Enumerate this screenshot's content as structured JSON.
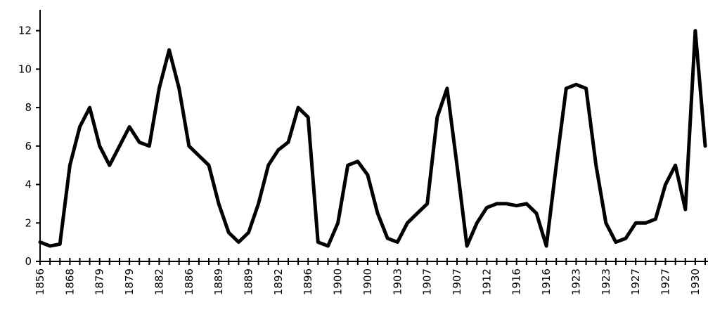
{
  "chart_data": {
    "type": "line",
    "title": "",
    "xlabel": "",
    "ylabel": "",
    "ylim": [
      0,
      12.5
    ],
    "y_ticks": [
      0,
      2,
      4,
      6,
      8,
      10,
      12
    ],
    "grid": false,
    "legend": "none",
    "line_color": "#000000",
    "x_tick_labels": [
      "1856",
      "1868",
      "1879",
      "1879",
      "1882",
      "1886",
      "1889",
      "1889",
      "1892",
      "1896",
      "1900",
      "1900",
      "1903",
      "1907",
      "1907",
      "1912",
      "1916",
      "1916",
      "1923",
      "1923",
      "1927",
      "1927",
      "1930"
    ],
    "x_tick_label_positions": [
      0,
      3,
      6,
      9,
      12,
      15,
      18,
      21,
      24,
      27,
      30,
      33,
      36,
      39,
      42,
      45,
      48,
      51,
      54,
      57,
      60,
      63,
      66
    ],
    "x_point_count": 68,
    "values": [
      1.0,
      0.8,
      0.9,
      5.0,
      7.0,
      8.0,
      6.0,
      5.0,
      6.0,
      7.0,
      6.2,
      6.0,
      9.0,
      11.0,
      9.0,
      6.0,
      5.5,
      5.0,
      3.0,
      1.5,
      1.0,
      1.5,
      3.0,
      5.0,
      5.8,
      6.2,
      8.0,
      7.5,
      1.0,
      0.8,
      2.0,
      5.0,
      5.2,
      4.5,
      2.5,
      1.2,
      1.0,
      2.0,
      2.5,
      3.0,
      7.5,
      9.0,
      5.0,
      0.8,
      2.0,
      2.8,
      3.0,
      3.0,
      2.9,
      3.0,
      2.5,
      0.8,
      5.0,
      9.0,
      9.2,
      9.0,
      5.0,
      2.0,
      1.0,
      1.2,
      2.0,
      2.0,
      2.2,
      4.0,
      5.0,
      2.7,
      12.0,
      6.0
    ]
  }
}
